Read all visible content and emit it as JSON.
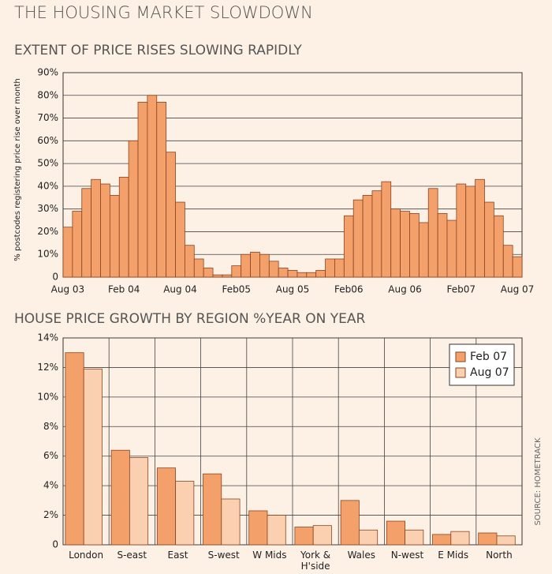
{
  "title": "THE HOUSING MARKET SLOWDOWN",
  "source": "SOURCE: HOMETRACK",
  "chart_data": [
    {
      "type": "bar",
      "title": "EXTENT OF PRICE RISES SLOWING RAPIDLY",
      "ylabel": "% postcodes registering price rise over month",
      "categories": [
        "Aug 03",
        null,
        null,
        null,
        null,
        null,
        "Feb 04",
        null,
        null,
        null,
        null,
        null,
        "Aug 04",
        null,
        null,
        null,
        null,
        null,
        "Feb05",
        null,
        null,
        null,
        null,
        null,
        "Aug 05",
        null,
        null,
        null,
        null,
        null,
        "Feb06",
        null,
        null,
        null,
        null,
        null,
        "Aug 06",
        null,
        null,
        null,
        null,
        null,
        "Feb07",
        null,
        null,
        null,
        null,
        null,
        "Aug 07"
      ],
      "values": [
        22,
        29,
        39,
        43,
        41,
        36,
        44,
        60,
        77,
        80,
        77,
        55,
        33,
        14,
        8,
        4,
        1,
        1,
        5,
        10,
        11,
        10,
        7,
        4,
        3,
        2,
        2,
        3,
        8,
        8,
        27,
        34,
        36,
        38,
        42,
        30,
        29,
        28,
        24,
        39,
        28,
        25,
        41,
        40,
        43,
        33,
        27,
        14,
        9
      ],
      "color": "#f4a06a",
      "ylim": [
        0,
        90
      ],
      "yticks": [
        0,
        {
          "value": 10,
          "label": "10%"
        },
        {
          "value": 20,
          "label": "20%"
        },
        {
          "value": 30,
          "label": "30%"
        },
        {
          "value": 40,
          "label": "40%"
        },
        {
          "value": 50,
          "label": "50%"
        },
        {
          "value": 60,
          "label": "60%"
        },
        {
          "value": 70,
          "label": "70%"
        },
        {
          "value": 80,
          "label": "80%"
        },
        {
          "value": 90,
          "label": "90%"
        }
      ],
      "grid": "y"
    },
    {
      "type": "bar",
      "title": "HOUSE PRICE GROWTH BY REGION %YEAR ON YEAR",
      "categories": [
        "London",
        "S-east",
        "East",
        "S-west",
        "W Mids",
        "York & H'side",
        "Wales",
        "N-west",
        "E Mids",
        "North"
      ],
      "series": [
        {
          "name": "Feb 07",
          "color": "#f4a06a",
          "values": [
            13,
            6.4,
            5.2,
            4.8,
            2.3,
            1.2,
            3.0,
            1.6,
            0.7,
            0.8
          ]
        },
        {
          "name": "Aug 07",
          "color": "#fbd0b0",
          "values": [
            11.9,
            5.9,
            4.3,
            3.1,
            2.0,
            1.3,
            1.0,
            1.0,
            0.9,
            0.6
          ]
        }
      ],
      "ylim": [
        0,
        14
      ],
      "yticks": [
        0,
        {
          "value": 2,
          "label": "2%"
        },
        {
          "value": 4,
          "label": "4%"
        },
        {
          "value": 6,
          "label": "6%"
        },
        {
          "value": 8,
          "label": "8%"
        },
        {
          "value": 10,
          "label": "10%"
        },
        {
          "value": 12,
          "label": "12%"
        },
        {
          "value": 14,
          "label": "14%"
        }
      ],
      "grid": "both",
      "legend": "upper right"
    }
  ]
}
